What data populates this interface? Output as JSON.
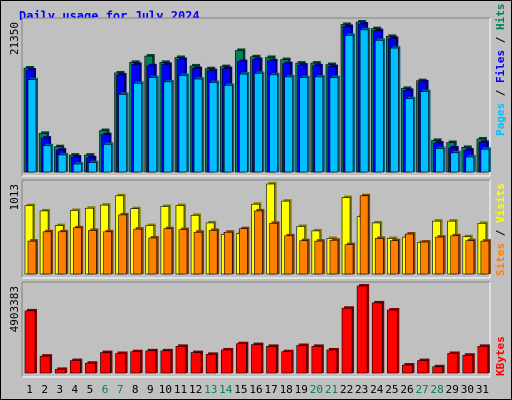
{
  "title": "Daily usage for July 2024",
  "colors": {
    "background": "#c0c0c0",
    "title": "#0000ff",
    "hits": "#00805c",
    "files": "#0000ff",
    "pages": "#00c0ff",
    "visits": "#ffff00",
    "sites": "#ff8000",
    "kbytes": "#ff0000",
    "weekend_tick": "#00805c",
    "weekday_tick": "#000000"
  },
  "legends": {
    "pages": "Pages",
    "files": "Files",
    "hits": "Hits",
    "sites": "Sites",
    "visits": "Visits",
    "kbytes": "KBytes",
    "sep": " / "
  },
  "chart_data": [
    {
      "type": "bar",
      "name": "hits-files-pages",
      "max_label": "21350",
      "ylim": [
        0,
        21350
      ],
      "categories": [
        "1",
        "2",
        "3",
        "4",
        "5",
        "6",
        "7",
        "8",
        "9",
        "10",
        "11",
        "12",
        "13",
        "14",
        "15",
        "16",
        "17",
        "18",
        "19",
        "20",
        "21",
        "22",
        "23",
        "24",
        "25",
        "26",
        "27",
        "28",
        "29",
        "30",
        "31"
      ],
      "weekend_days": [
        6,
        7,
        13,
        14,
        20,
        21,
        27,
        28
      ],
      "series": [
        {
          "name": "Hits",
          "values": [
            14800,
            5500,
            3600,
            2400,
            2400,
            5900,
            14100,
            15600,
            16500,
            15600,
            16300,
            15100,
            14700,
            15000,
            17300,
            16400,
            16300,
            16000,
            15500,
            15500,
            15300,
            21000,
            21350,
            20400,
            19300,
            11900,
            13000,
            4500,
            4200,
            3500,
            4700
          ]
        },
        {
          "name": "Files",
          "values": [
            14800,
            5100,
            3400,
            2400,
            2300,
            5600,
            14100,
            15600,
            15400,
            15600,
            16300,
            15000,
            14700,
            15000,
            16000,
            16300,
            16100,
            15700,
            15500,
            15400,
            15300,
            21000,
            21350,
            20400,
            19300,
            11900,
            13100,
            4400,
            3700,
            3400,
            4500
          ]
        },
        {
          "name": "Pages",
          "values": [
            13700,
            4300,
            3000,
            1700,
            1900,
            4500,
            11600,
            13200,
            14000,
            13400,
            14300,
            13800,
            13300,
            12900,
            14500,
            14600,
            14400,
            14100,
            14000,
            14100,
            14000,
            20000,
            20800,
            19300,
            18200,
            11000,
            12000,
            3900,
            3300,
            2700,
            3800
          ]
        }
      ]
    },
    {
      "type": "bar",
      "name": "visits-sites",
      "max_label": "1013",
      "ylim": [
        0,
        1013
      ],
      "categories": [
        "1",
        "2",
        "3",
        "4",
        "5",
        "6",
        "7",
        "8",
        "9",
        "10",
        "11",
        "12",
        "13",
        "14",
        "15",
        "16",
        "17",
        "18",
        "19",
        "20",
        "21",
        "22",
        "23",
        "24",
        "25",
        "26",
        "27",
        "28",
        "29",
        "30",
        "31"
      ],
      "series": [
        {
          "name": "Visits",
          "values": [
            770,
            710,
            545,
            715,
            740,
            775,
            880,
            735,
            545,
            760,
            770,
            660,
            575,
            445,
            455,
            785,
            1013,
            820,
            535,
            485,
            400,
            860,
            645,
            575,
            400,
            415,
            355,
            595,
            595,
            420,
            570
          ]
        },
        {
          "name": "Sites",
          "values": [
            370,
            475,
            475,
            520,
            490,
            475,
            665,
            505,
            405,
            510,
            500,
            470,
            490,
            470,
            510,
            710,
            570,
            430,
            375,
            370,
            380,
            330,
            880,
            400,
            375,
            450,
            360,
            415,
            430,
            375,
            370
          ]
        }
      ]
    },
    {
      "type": "bar",
      "name": "kbytes",
      "max_label": "4903383",
      "ylim": [
        0,
        4903383
      ],
      "categories": [
        "1",
        "2",
        "3",
        "4",
        "5",
        "6",
        "7",
        "8",
        "9",
        "10",
        "11",
        "12",
        "13",
        "14",
        "15",
        "16",
        "17",
        "18",
        "19",
        "20",
        "21",
        "22",
        "23",
        "24",
        "25",
        "26",
        "27",
        "28",
        "29",
        "30",
        "31"
      ],
      "series": [
        {
          "name": "KBytes",
          "values": [
            3500000,
            950000,
            200000,
            700000,
            550000,
            1150000,
            1100000,
            1200000,
            1250000,
            1250000,
            1500000,
            1150000,
            1050000,
            1300000,
            1650000,
            1600000,
            1500000,
            1200000,
            1550000,
            1500000,
            1300000,
            3650000,
            4903383,
            3950000,
            3550000,
            450000,
            700000,
            350000,
            1100000,
            1000000,
            1500000
          ]
        }
      ]
    }
  ]
}
